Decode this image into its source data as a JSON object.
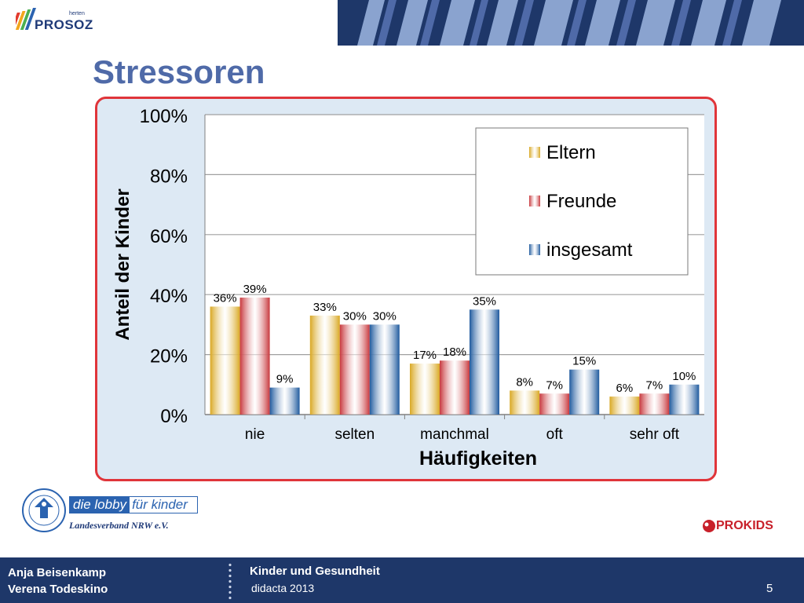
{
  "header": {
    "brand": "PROSOZ",
    "brand_sub": "herten",
    "accent_colors": [
      "#1e3769",
      "#4f6aa8",
      "#8aa3cf"
    ]
  },
  "slide": {
    "title": "Stressoren"
  },
  "chart_data": {
    "type": "bar",
    "title": "",
    "xlabel": "Häufigkeiten",
    "ylabel": "Anteil der Kinder",
    "ylim": [
      0,
      100
    ],
    "yticks": [
      "0%",
      "20%",
      "40%",
      "60%",
      "80%",
      "100%"
    ],
    "categories": [
      "nie",
      "selten",
      "manchmal",
      "oft",
      "sehr oft"
    ],
    "series": [
      {
        "name": "Eltern",
        "values": [
          36,
          33,
          17,
          8,
          6
        ],
        "labels": [
          "36%",
          "33%",
          "17%",
          "8%",
          "6%"
        ],
        "color": "#d9a823"
      },
      {
        "name": "Freunde",
        "values": [
          39,
          30,
          18,
          7,
          7
        ],
        "labels": [
          "39%",
          "30%",
          "18%",
          "7%",
          "7%"
        ],
        "color": "#c8383d"
      },
      {
        "name": "insgesamt",
        "values": [
          9,
          30,
          35,
          15,
          10
        ],
        "labels": [
          "9%",
          "30%",
          "35%",
          "15%",
          "10%"
        ],
        "color": "#1f5a9e"
      }
    ],
    "grid": true,
    "legend_position": "top-right"
  },
  "lobby": {
    "part1": "die lobby",
    "part2": "für kinder",
    "region": "Landesverband NRW e.V."
  },
  "prokids": {
    "brand": "PROKIDS"
  },
  "footer": {
    "author1": "Anja Beisenkamp",
    "author2": "Verena Todeskino",
    "event": "Kinder und Gesundheit",
    "event_sub": "didacta 2013",
    "page": "5"
  }
}
